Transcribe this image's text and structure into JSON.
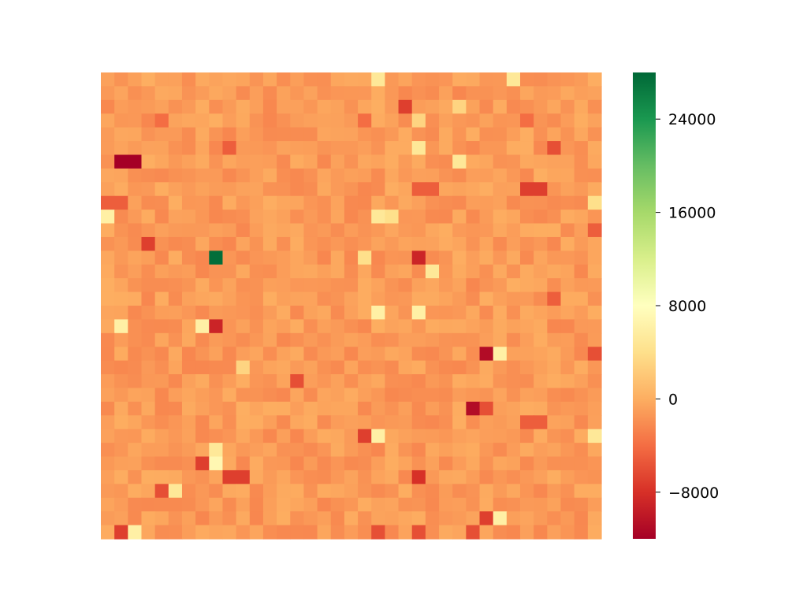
{
  "chart_data": {
    "type": "heatmap",
    "title": "",
    "xlabel": "",
    "ylabel": "",
    "rows": 34,
    "cols": 37,
    "x_tick_labels": [],
    "y_tick_labels": [],
    "colormap": "RdYlGn",
    "colormap_stops": [
      "#a50026",
      "#d73027",
      "#f46d43",
      "#fdae61",
      "#fee08b",
      "#ffffbf",
      "#d9ef8b",
      "#a6d96a",
      "#66bd63",
      "#1a9850",
      "#006837"
    ],
    "value_range": [
      -12000,
      28000
    ],
    "colorbar": {
      "ticks": [
        -8000,
        0,
        8000,
        16000,
        24000
      ],
      "tick_labels": [
        "−8000",
        "0",
        "8000",
        "16000",
        "24000"
      ]
    },
    "background_value": -1200,
    "notable_cells": [
      {
        "row": 0,
        "col": 20,
        "value": 5000
      },
      {
        "row": 0,
        "col": 30,
        "value": 5000
      },
      {
        "row": 2,
        "col": 22,
        "value": -7000
      },
      {
        "row": 2,
        "col": 26,
        "value": 3000
      },
      {
        "row": 3,
        "col": 4,
        "value": -4000
      },
      {
        "row": 3,
        "col": 19,
        "value": -4000
      },
      {
        "row": 3,
        "col": 23,
        "value": 3000
      },
      {
        "row": 3,
        "col": 31,
        "value": -4000
      },
      {
        "row": 5,
        "col": 9,
        "value": -5000
      },
      {
        "row": 5,
        "col": 23,
        "value": 5000
      },
      {
        "row": 5,
        "col": 33,
        "value": -6000
      },
      {
        "row": 6,
        "col": 1,
        "value": -12000
      },
      {
        "row": 6,
        "col": 2,
        "value": -12000
      },
      {
        "row": 6,
        "col": 26,
        "value": 5000
      },
      {
        "row": 8,
        "col": 23,
        "value": -5000
      },
      {
        "row": 8,
        "col": 24,
        "value": -5000
      },
      {
        "row": 8,
        "col": 31,
        "value": -7000
      },
      {
        "row": 8,
        "col": 32,
        "value": -7000
      },
      {
        "row": 9,
        "col": 0,
        "value": -5000
      },
      {
        "row": 9,
        "col": 1,
        "value": -5000
      },
      {
        "row": 9,
        "col": 36,
        "value": 4000
      },
      {
        "row": 10,
        "col": 0,
        "value": 6000
      },
      {
        "row": 10,
        "col": 20,
        "value": 5000
      },
      {
        "row": 10,
        "col": 21,
        "value": 4000
      },
      {
        "row": 11,
        "col": 36,
        "value": -5000
      },
      {
        "row": 12,
        "col": 3,
        "value": -7000
      },
      {
        "row": 13,
        "col": 8,
        "value": 27500
      },
      {
        "row": 13,
        "col": 19,
        "value": 4000
      },
      {
        "row": 13,
        "col": 23,
        "value": -9000
      },
      {
        "row": 14,
        "col": 24,
        "value": 5000
      },
      {
        "row": 16,
        "col": 33,
        "value": -5000
      },
      {
        "row": 17,
        "col": 20,
        "value": 6000
      },
      {
        "row": 17,
        "col": 23,
        "value": 6000
      },
      {
        "row": 18,
        "col": 1,
        "value": 6000
      },
      {
        "row": 18,
        "col": 7,
        "value": 6000
      },
      {
        "row": 18,
        "col": 8,
        "value": -9000
      },
      {
        "row": 20,
        "col": 28,
        "value": -11000
      },
      {
        "row": 20,
        "col": 29,
        "value": 6000
      },
      {
        "row": 20,
        "col": 36,
        "value": -6000
      },
      {
        "row": 21,
        "col": 10,
        "value": 3000
      },
      {
        "row": 22,
        "col": 14,
        "value": -6000
      },
      {
        "row": 24,
        "col": 27,
        "value": -11000
      },
      {
        "row": 24,
        "col": 28,
        "value": -6000
      },
      {
        "row": 25,
        "col": 31,
        "value": -5000
      },
      {
        "row": 25,
        "col": 32,
        "value": -5000
      },
      {
        "row": 26,
        "col": 19,
        "value": -7000
      },
      {
        "row": 26,
        "col": 20,
        "value": 6000
      },
      {
        "row": 26,
        "col": 36,
        "value": 5000
      },
      {
        "row": 27,
        "col": 8,
        "value": 5000
      },
      {
        "row": 28,
        "col": 7,
        "value": -7000
      },
      {
        "row": 28,
        "col": 8,
        "value": 7000
      },
      {
        "row": 29,
        "col": 9,
        "value": -7000
      },
      {
        "row": 29,
        "col": 10,
        "value": -7000
      },
      {
        "row": 29,
        "col": 23,
        "value": -8000
      },
      {
        "row": 30,
        "col": 4,
        "value": -6000
      },
      {
        "row": 30,
        "col": 5,
        "value": 5000
      },
      {
        "row": 32,
        "col": 28,
        "value": -7000
      },
      {
        "row": 32,
        "col": 29,
        "value": 6000
      },
      {
        "row": 33,
        "col": 1,
        "value": -7000
      },
      {
        "row": 33,
        "col": 2,
        "value": 6000
      },
      {
        "row": 33,
        "col": 20,
        "value": -6000
      },
      {
        "row": 33,
        "col": 23,
        "value": -6000
      },
      {
        "row": 33,
        "col": 27,
        "value": -6000
      }
    ]
  }
}
